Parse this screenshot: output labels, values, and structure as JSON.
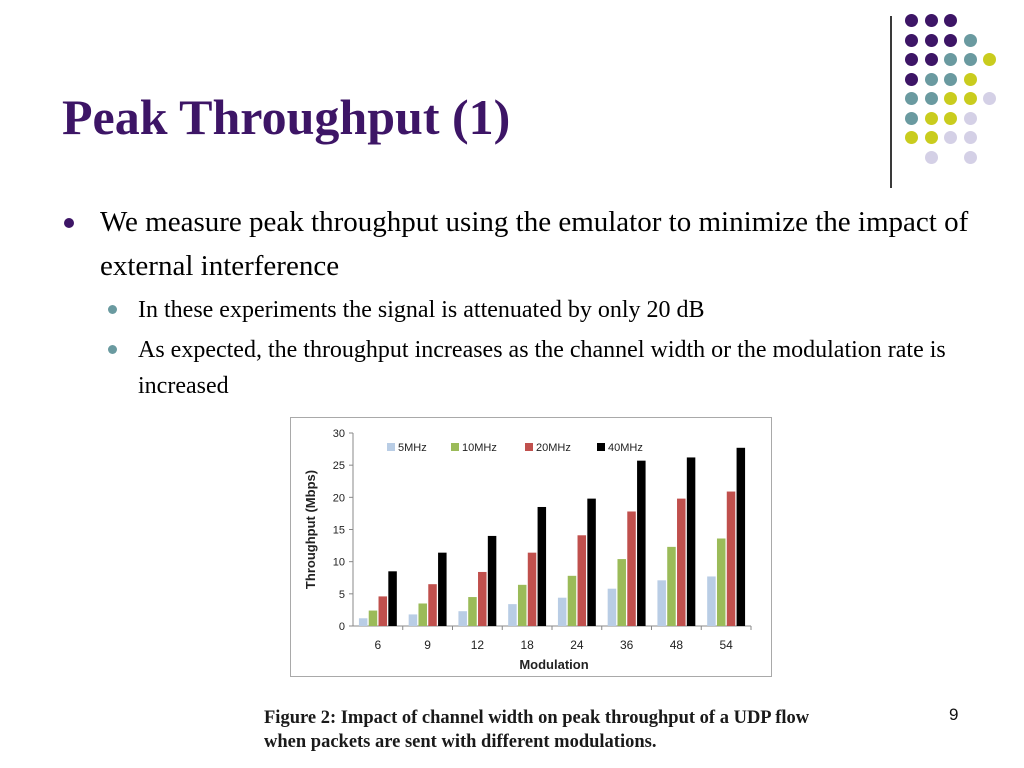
{
  "slide": {
    "title": "Peak Throughput (1)",
    "page_number": "9",
    "bullets": [
      {
        "text": "We measure peak throughput using the emulator to minimize the impact of external interference",
        "level": 1
      },
      {
        "text": "In these experiments the signal is attenuated by only 20 dB",
        "level": 2
      },
      {
        "text": "As expected, the throughput increases as the channel width or the modulation rate is increased",
        "level": 2
      }
    ],
    "caption": "Figure 2:  Impact of channel width on peak throughput of a UDP flow when packets are sent with different modulations."
  },
  "colors": {
    "title": "#3d1566",
    "dot_purple": "#3d1566",
    "dot_teal": "#6a9aa0",
    "dot_yellow": "#c9cc1e",
    "dot_lavender": "#d4d0e6"
  },
  "dot_grid": [
    [
      "purple",
      "purple",
      "purple",
      null,
      null
    ],
    [
      "purple",
      "purple",
      "purple",
      "teal",
      null
    ],
    [
      "purple",
      "purple",
      "teal",
      "teal",
      "yellow"
    ],
    [
      "purple",
      "teal",
      "teal",
      "yellow",
      null
    ],
    [
      "teal",
      "teal",
      "yellow",
      "yellow",
      "lavender"
    ],
    [
      "teal",
      "yellow",
      "yellow",
      "lavender",
      null
    ],
    [
      "yellow",
      "yellow",
      "lavender",
      "lavender",
      null
    ],
    [
      null,
      "lavender",
      null,
      "lavender",
      null
    ]
  ],
  "chart_data": {
    "type": "bar",
    "title": "",
    "xlabel": "Modulation",
    "ylabel": "Throughput (Mbps)",
    "categories": [
      "6",
      "9",
      "12",
      "18",
      "24",
      "36",
      "48",
      "54"
    ],
    "ylim": [
      0,
      30
    ],
    "yticks": [
      0,
      5,
      10,
      15,
      20,
      25,
      30
    ],
    "legend_position": "top",
    "series": [
      {
        "name": "5MHz",
        "color": "#b9cde5",
        "values": [
          1.2,
          1.8,
          2.3,
          3.4,
          4.4,
          5.8,
          7.1,
          7.7
        ]
      },
      {
        "name": "10MHz",
        "color": "#9bbb59",
        "values": [
          2.4,
          3.5,
          4.5,
          6.4,
          7.8,
          10.4,
          12.3,
          13.6
        ]
      },
      {
        "name": "20MHz",
        "color": "#c0504d",
        "values": [
          4.6,
          6.5,
          8.4,
          11.4,
          14.1,
          17.8,
          19.8,
          20.9
        ]
      },
      {
        "name": "40MHz",
        "color": "#000000",
        "values": [
          8.5,
          11.4,
          14.0,
          18.5,
          19.8,
          25.7,
          26.2,
          27.7
        ]
      }
    ]
  }
}
